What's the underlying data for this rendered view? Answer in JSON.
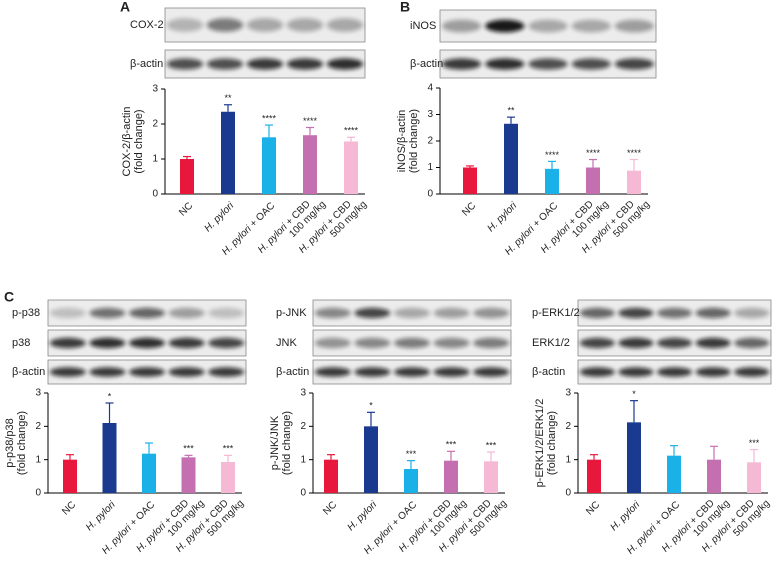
{
  "panel_labels": [
    "A",
    "B",
    "C"
  ],
  "blot_labels": [
    [
      "COX-2",
      "β-actin"
    ],
    [
      "iNOS",
      "β-actin"
    ],
    [
      "p-p38",
      "p38",
      "β-actin"
    ],
    [
      "p-JNK",
      "JNK",
      "β-actin"
    ],
    [
      "p-ERK1/2",
      "ERK1/2",
      "β-actin"
    ]
  ],
  "chart_data": [
    {
      "type": "bar",
      "ylabel": [
        "COX-2/β-actin",
        "(fold change)"
      ],
      "categories": [
        "NC",
        "H. pylori",
        "H. pylori + OAC",
        "H. pylori + CBD 100 mg/kg",
        "H. pylori + CBD 500 mg/kg"
      ],
      "values": [
        1.0,
        2.35,
        1.62,
        1.68,
        1.5
      ],
      "errors": [
        0.07,
        0.2,
        0.35,
        0.22,
        0.12
      ],
      "annotations": [
        null,
        "**",
        "****",
        "****",
        "****"
      ],
      "colors": [
        "#e8173c",
        "#1a3a8f",
        "#1ab0e8",
        "#c470b0",
        "#f5b8d5"
      ],
      "ylim": [
        0,
        3
      ],
      "yticks": [
        0,
        1,
        2,
        3
      ]
    },
    {
      "type": "bar",
      "ylabel": [
        "iNOS/β-actin",
        "(fold change)"
      ],
      "categories": [
        "NC",
        "H. pylori",
        "H. pylori + OAC",
        "H. pylori + CBD 100 mg/kg",
        "H. pylori + CBD 500 mg/kg"
      ],
      "values": [
        1.0,
        2.65,
        0.95,
        1.0,
        0.88
      ],
      "errors": [
        0.06,
        0.25,
        0.28,
        0.3,
        0.42
      ],
      "annotations": [
        null,
        "**",
        "****",
        "****",
        "****"
      ],
      "colors": [
        "#e8173c",
        "#1a3a8f",
        "#1ab0e8",
        "#c470b0",
        "#f5b8d5"
      ],
      "ylim": [
        0,
        4
      ],
      "yticks": [
        0,
        1,
        2,
        3,
        4
      ]
    },
    {
      "type": "bar",
      "ylabel": [
        "p-p38/p38",
        "(fold change)"
      ],
      "categories": [
        "NC",
        "H. pylori",
        "H. pylori + OAC",
        "H. pylori + CBD 100 mg/kg",
        "H. pylori + CBD 500 mg/kg"
      ],
      "values": [
        1.0,
        2.1,
        1.18,
        1.07,
        0.93
      ],
      "errors": [
        0.15,
        0.6,
        0.32,
        0.06,
        0.2
      ],
      "annotations": [
        null,
        "*",
        null,
        "***",
        "***"
      ],
      "colors": [
        "#e8173c",
        "#1a3a8f",
        "#1ab0e8",
        "#c470b0",
        "#f5b8d5"
      ],
      "ylim": [
        0,
        3
      ],
      "yticks": [
        0,
        1,
        2,
        3
      ]
    },
    {
      "type": "bar",
      "ylabel": [
        "p-JNK/JNK",
        "(fold change)"
      ],
      "categories": [
        "NC",
        "H. pylori",
        "H. pylori + OAC",
        "H. pylori + CBD 100 mg/kg",
        "H. pylori + CBD 500 mg/kg"
      ],
      "values": [
        1.0,
        2.0,
        0.72,
        0.97,
        0.95
      ],
      "errors": [
        0.15,
        0.42,
        0.25,
        0.28,
        0.28
      ],
      "annotations": [
        null,
        "*",
        "***",
        "***",
        "***"
      ],
      "colors": [
        "#e8173c",
        "#1a3a8f",
        "#1ab0e8",
        "#c470b0",
        "#f5b8d5"
      ],
      "ylim": [
        0,
        3
      ],
      "yticks": [
        0,
        1,
        2,
        3
      ]
    },
    {
      "type": "bar",
      "ylabel": [
        "p-ERK1/2/ERK1/2",
        "(fold change)"
      ],
      "categories": [
        "NC",
        "H. pylori",
        "H. pylori + OAC",
        "H. pylori + CBD 100 mg/kg",
        "H. pylori + CBD 500 mg/kg"
      ],
      "values": [
        1.0,
        2.12,
        1.12,
        1.0,
        0.92
      ],
      "errors": [
        0.15,
        0.65,
        0.3,
        0.4,
        0.38
      ],
      "annotations": [
        null,
        "*",
        null,
        null,
        "***"
      ],
      "colors": [
        "#e8173c",
        "#1a3a8f",
        "#1ab0e8",
        "#c470b0",
        "#f5b8d5"
      ],
      "ylim": [
        0,
        3
      ],
      "yticks": [
        0,
        1,
        2,
        3
      ]
    }
  ]
}
